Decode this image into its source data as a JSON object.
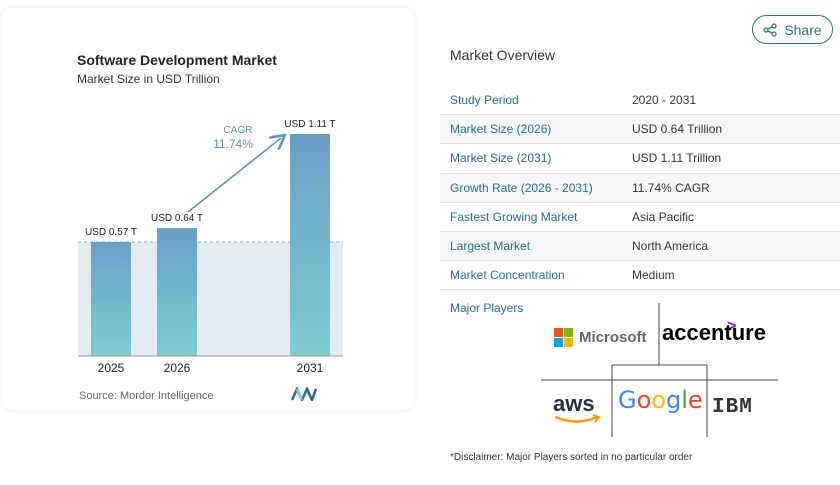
{
  "chart_data": {
    "type": "bar",
    "title": "Software Development Market",
    "subtitle": "Market Size in USD Trillion",
    "categories": [
      "2025",
      "2026",
      "2031"
    ],
    "values": [
      0.57,
      0.64,
      1.11
    ],
    "data_labels": [
      "USD 0.57 T",
      "USD 0.64 T",
      "USD 1.11 T"
    ],
    "ylim": [
      0,
      1.2
    ],
    "cagr": {
      "label": "CAGR",
      "value": "11.74%"
    },
    "source": "Source: Mordor Intelligence",
    "colors": {
      "bar_top": "#6a9fc6",
      "bar_bottom": "#7ecbd0",
      "band": "#dde8f0",
      "arrow": "#5b95b8"
    }
  },
  "share": {
    "label": "Share",
    "icon": "share-icon"
  },
  "overview": {
    "title": "Market Overview",
    "rows": [
      {
        "label": "Study Period",
        "value": "2020 - 2031"
      },
      {
        "label": "Market Size (2026)",
        "value": "USD 0.64 Trillion"
      },
      {
        "label": "Market Size (2031)",
        "value": "USD 1.11 Trillion"
      },
      {
        "label": "Growth Rate (2026 - 2031)",
        "value": "11.74% CAGR"
      },
      {
        "label": "Fastest Growing Market",
        "value": "Asia Pacific"
      },
      {
        "label": "Largest Market",
        "value": "North America"
      },
      {
        "label": "Market Concentration",
        "value": "Medium"
      }
    ],
    "players_label": "Major Players",
    "players": {
      "microsoft": "Microsoft",
      "accenture": "accenture",
      "aws": "aws",
      "google": [
        "G",
        "o",
        "o",
        "g",
        "l",
        "e"
      ],
      "ibm": "IBM"
    },
    "google_colors": [
      "#4285f4",
      "#ea4335",
      "#fbbc05",
      "#4285f4",
      "#34a853",
      "#ea4335"
    ],
    "microsoft_colors": [
      "#f25022",
      "#7fba00",
      "#00a4ef",
      "#ffb900"
    ],
    "disclaimer": "*Disclaimer: Major Players sorted in no particular order"
  }
}
